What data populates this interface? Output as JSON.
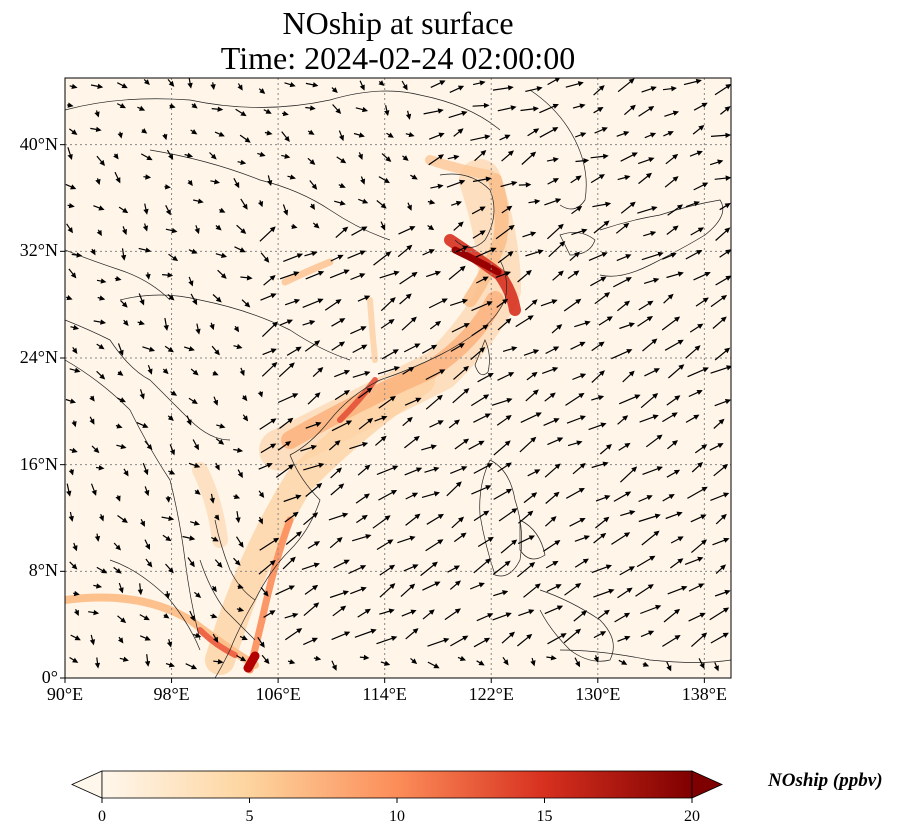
{
  "title": "NOship at surface",
  "subtitle": "Time: 2024-02-24 02:00:00",
  "map": {
    "lon_range": [
      90,
      140
    ],
    "lat_range": [
      0,
      45
    ],
    "lon_ticks": [
      "90°E",
      "98°E",
      "106°E",
      "114°E",
      "122°E",
      "130°E",
      "138°E"
    ],
    "lon_tick_values": [
      90,
      98,
      106,
      114,
      122,
      130,
      138
    ],
    "lat_ticks": [
      "0°",
      "8°N",
      "16°N",
      "24°N",
      "32°N",
      "40°N"
    ],
    "lat_tick_values": [
      0,
      8,
      16,
      24,
      32,
      40
    ],
    "gridlines": "dotted",
    "layers": [
      "NOship concentration field",
      "wind vectors",
      "coastlines and borders"
    ]
  },
  "colorbar": {
    "label": "NOship (ppbv)",
    "ticks": [
      "0",
      "5",
      "10",
      "15",
      "20"
    ],
    "tick_values": [
      0,
      5,
      10,
      15,
      20
    ],
    "colormap": "OrRd",
    "extend": "both",
    "colors": [
      "#fff7ec",
      "#fdd49e",
      "#fc8d59",
      "#d7301f",
      "#7f0000"
    ]
  }
}
